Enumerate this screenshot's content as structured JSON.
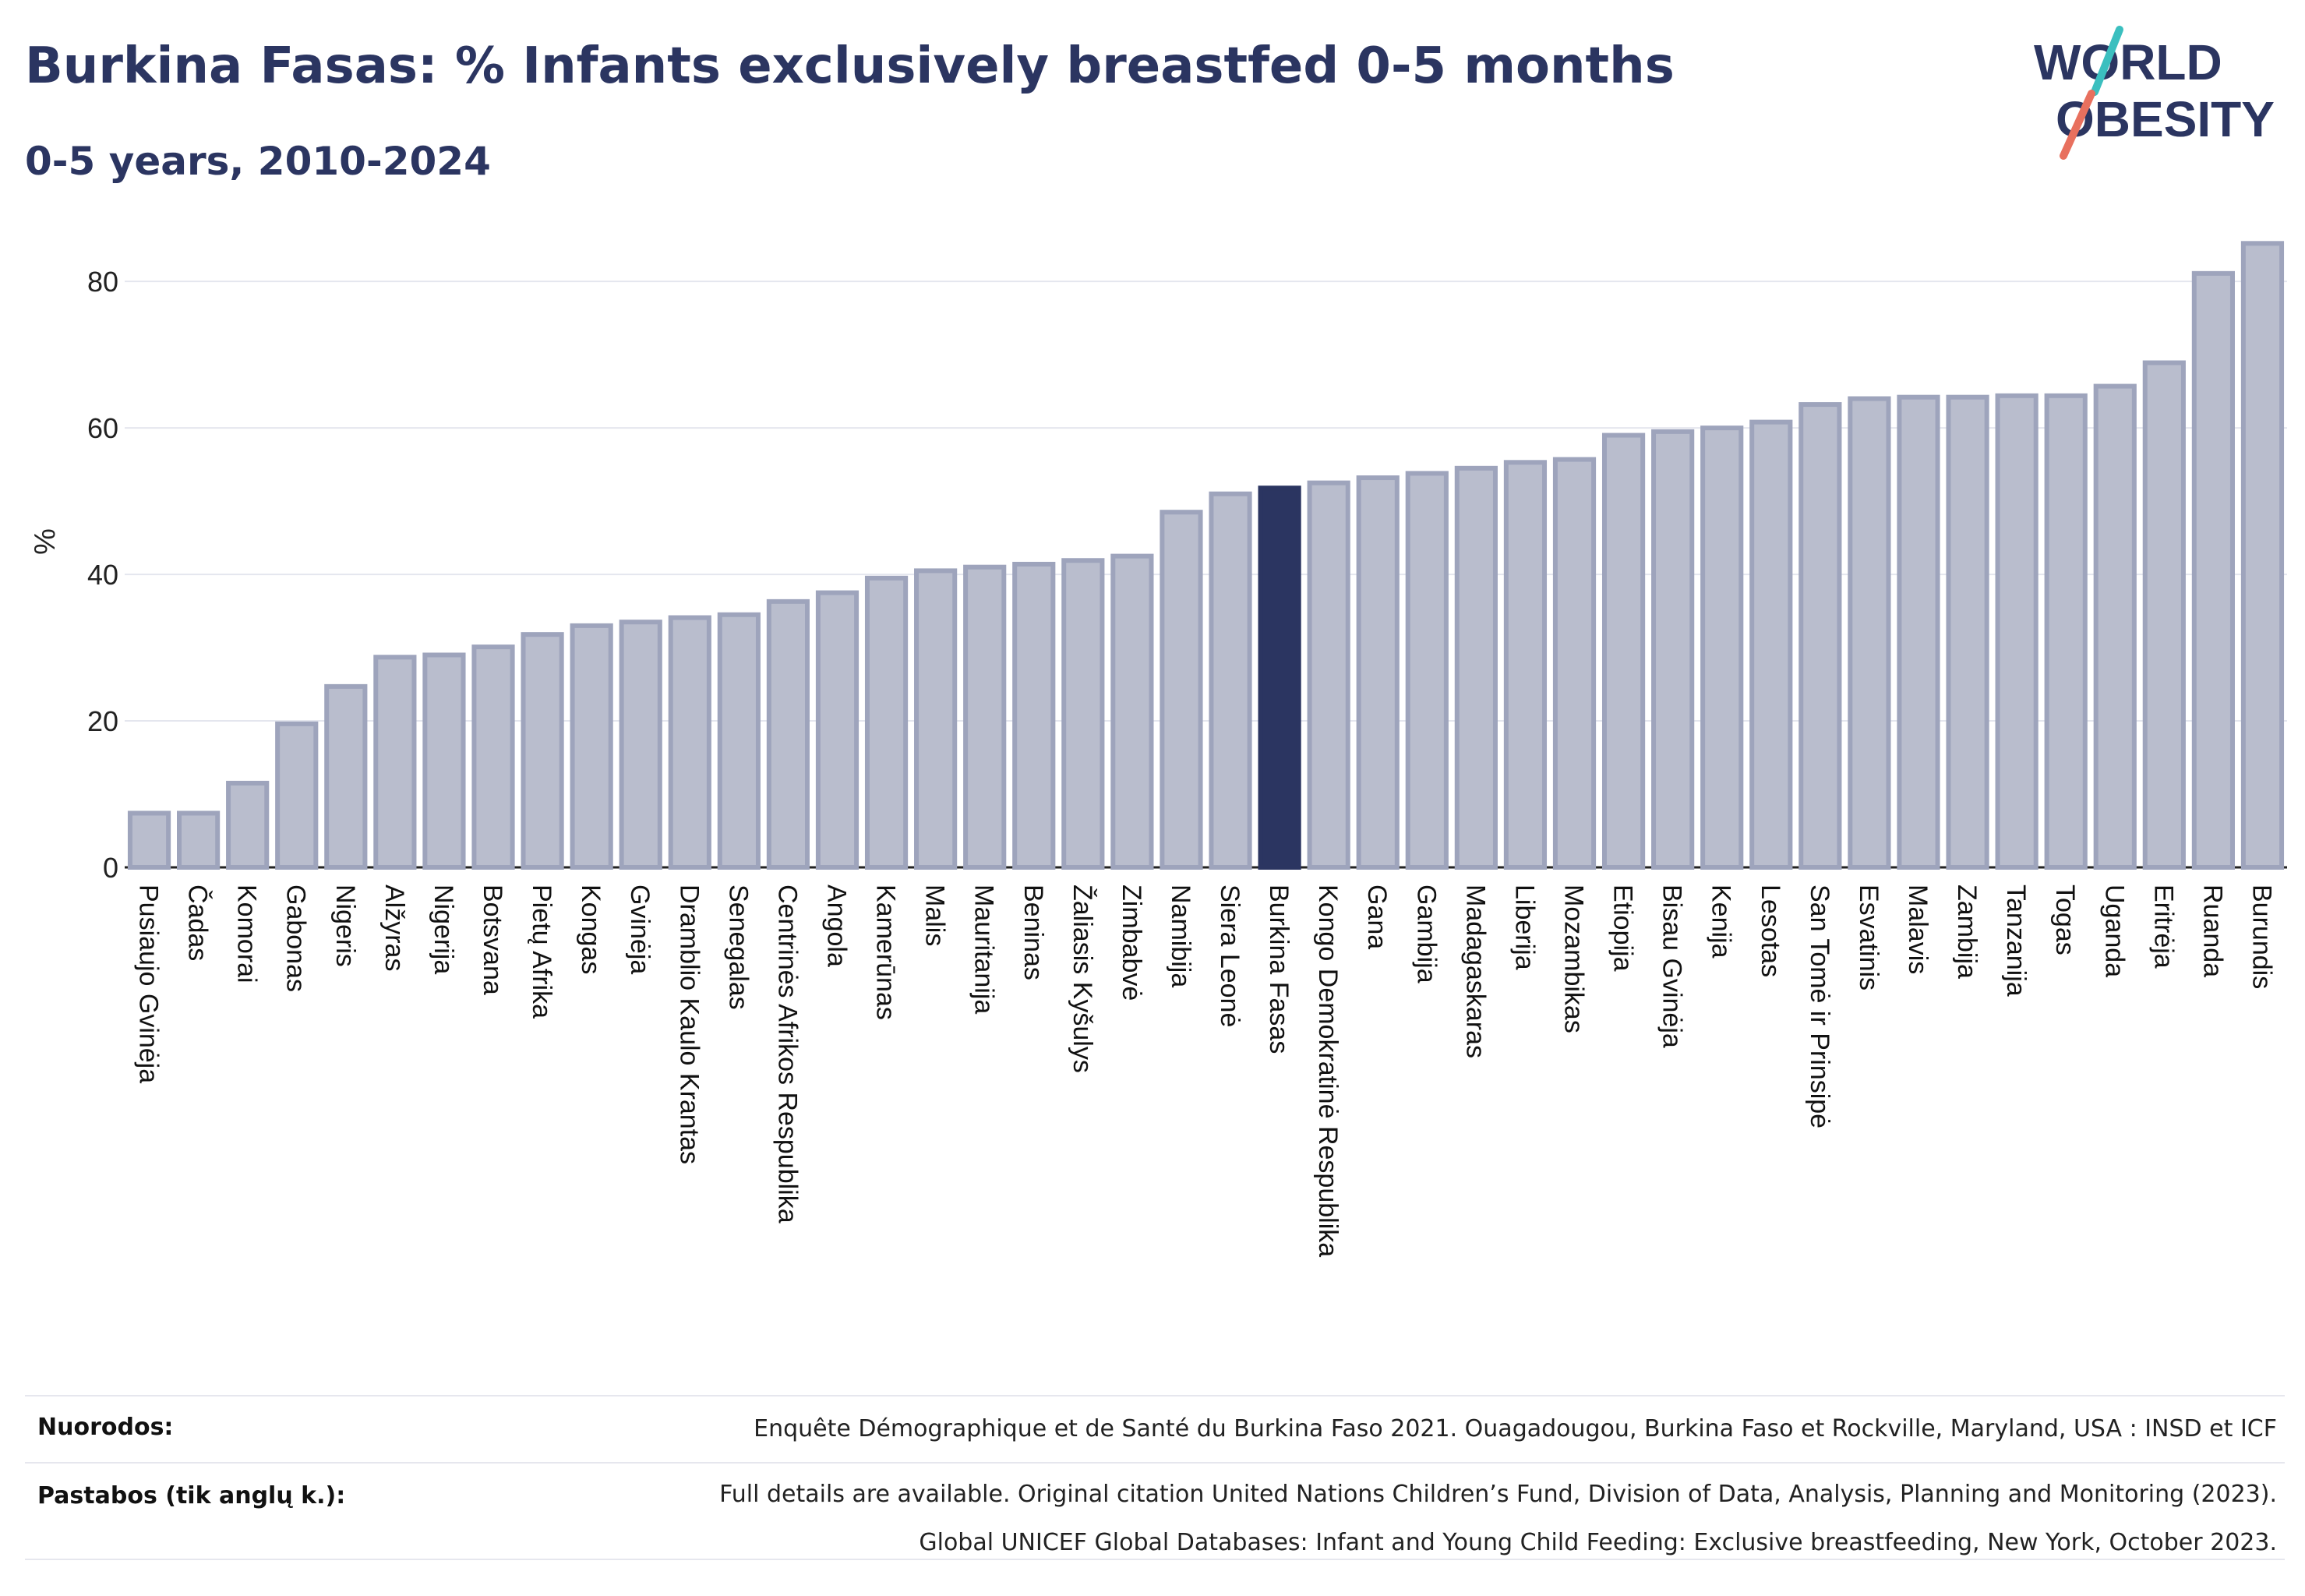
{
  "title": "Burkina Fasas: % Infants exclusively breastfed 0-5 months",
  "subtitle": "0-5 years, 2010-2024",
  "logo": {
    "line1": "WORLD",
    "line2": "OBESITY"
  },
  "colors": {
    "bar": "#b9bdcd",
    "bar_stroke": "#9ea4bc",
    "highlight": "#2b3561",
    "grid": "#e4e6ee",
    "accent_teal": "#3bbfbf",
    "accent_coral": "#e8705e"
  },
  "chart_data": {
    "type": "bar",
    "title": "Burkina Fasas: % Infants exclusively breastfed 0-5 months",
    "subtitle": "0-5 years, 2010-2024",
    "ylabel": "%",
    "xlabel": "",
    "ylim": [
      0,
      88
    ],
    "yticks": [
      0,
      20,
      40,
      60,
      80
    ],
    "grid": true,
    "highlight": "Burkina Fasas",
    "categories": [
      "Pusiaujo Gvinėja",
      "Čadas",
      "Komorai",
      "Gabonas",
      "Nigeris",
      "Alžyras",
      "Nigerija",
      "Botsvana",
      "Pietų Afrika",
      "Kongas",
      "Gvinėja",
      "Dramblio Kaulo Krantas",
      "Senegalas",
      "Centrinės Afrikos Respublika",
      "Angola",
      "Kamerūnas",
      "Malis",
      "Mauritanija",
      "Beninas",
      "Žaliasis Kyšulys",
      "Zimbabvė",
      "Namibija",
      "Siera Leonė",
      "Burkina Fasas",
      "Kongo Demokratinė Respublika",
      "Gana",
      "Gambija",
      "Madagaskaras",
      "Liberija",
      "Mozambikas",
      "Etiopija",
      "Bisau Gvinėja",
      "Kenija",
      "Lesotas",
      "San Tomė ir Prinsipė",
      "Esvatinis",
      "Malavis",
      "Zambija",
      "Tanzanija",
      "Togas",
      "Uganda",
      "Eritrėja",
      "Ruanda",
      "Burundis"
    ],
    "values": [
      7.4,
      7.4,
      11.5,
      19.6,
      24.7,
      28.7,
      29.0,
      30.1,
      31.8,
      33.0,
      33.5,
      34.1,
      34.5,
      36.3,
      37.5,
      39.5,
      40.5,
      41.0,
      41.4,
      41.9,
      42.5,
      48.5,
      51.0,
      51.8,
      52.5,
      53.2,
      53.8,
      54.5,
      55.3,
      55.7,
      59.0,
      59.5,
      60.0,
      60.8,
      63.2,
      64.0,
      64.2,
      64.2,
      64.4,
      64.4,
      65.7,
      68.9,
      81.1,
      85.2
    ]
  },
  "footer": {
    "sources_label": "Nuorodos:",
    "sources_text": "Enquête Démographique et de Santé du Burkina Faso 2021. Ouagadougou, Burkina Faso et Rockville, Maryland, USA : INSD et ICF",
    "notes_label": "Pastabos (tik anglų k.):",
    "notes_line1": "Full details are available. Original citation United Nations Children’s Fund, Division of Data, Analysis, Planning and Monitoring (2023).",
    "notes_line2": "Global UNICEF Global Databases: Infant and Young Child Feeding: Exclusive breastfeeding, New York, October 2023."
  }
}
